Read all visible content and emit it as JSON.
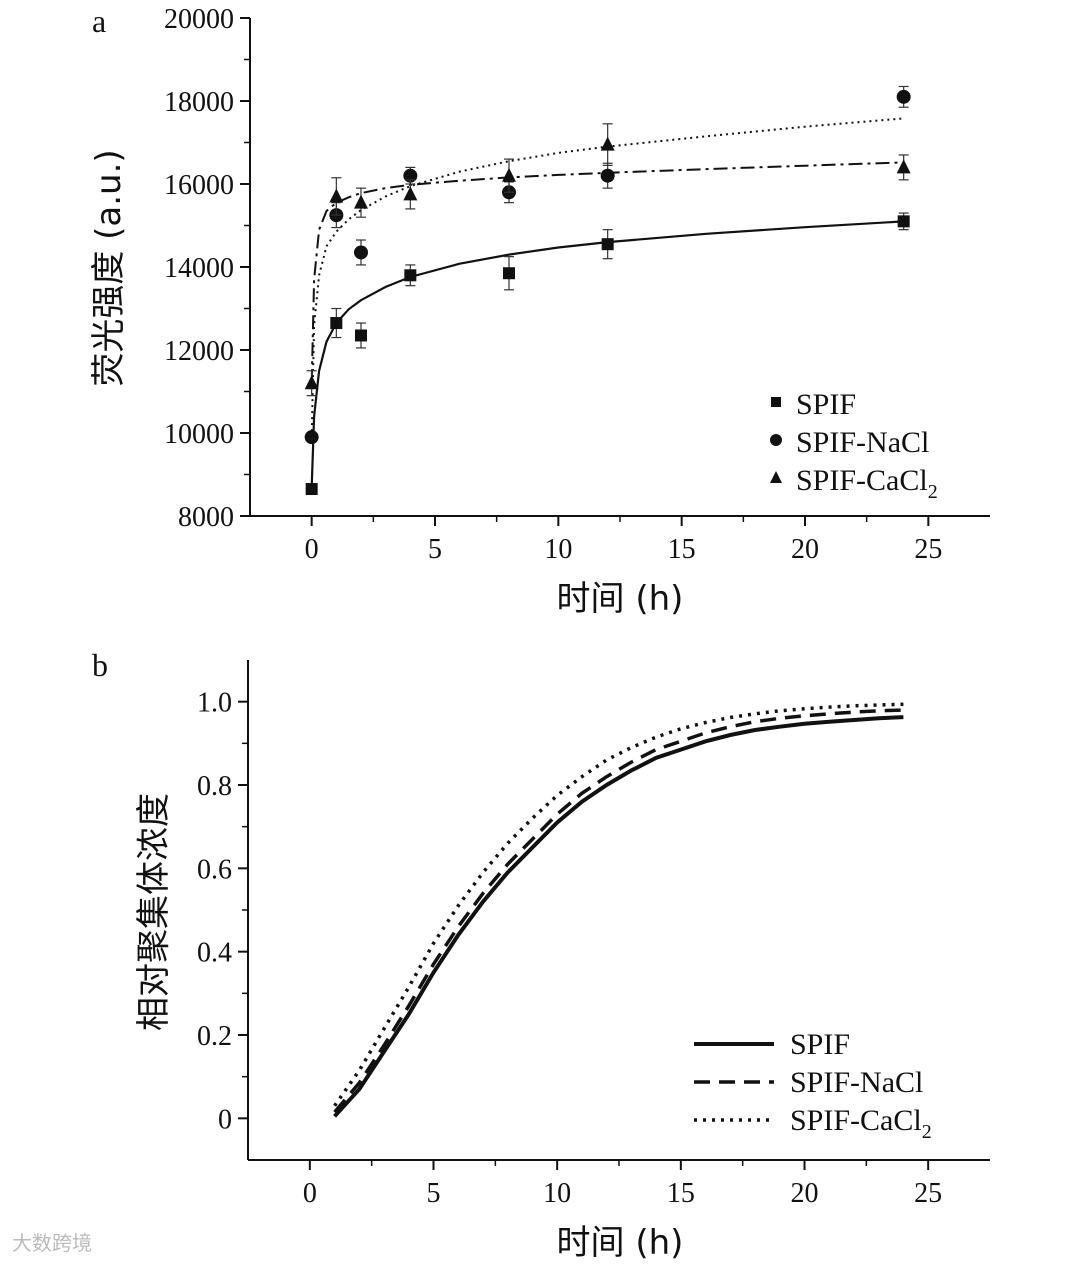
{
  "chart_data": [
    {
      "type": "scatter",
      "panel_label": "a",
      "xlabel": "时间 (h)",
      "ylabel": "荧光强度 (a.u.)",
      "xlim": [
        -2.5,
        27.5
      ],
      "ylim": [
        8000,
        20000
      ],
      "xticks": [
        0,
        5,
        10,
        15,
        20,
        25
      ],
      "yticks": [
        8000,
        10000,
        12000,
        14000,
        16000,
        18000,
        20000
      ],
      "legend_position": "bottom-right",
      "series": [
        {
          "name": "SPIF",
          "marker": "square",
          "fit_style": "solid",
          "x": [
            0,
            1,
            2,
            4,
            8,
            12,
            24
          ],
          "y": [
            8650,
            12650,
            12350,
            13800,
            13850,
            14550,
            15100
          ],
          "err": [
            0,
            350,
            300,
            250,
            400,
            350,
            200
          ]
        },
        {
          "name": "SPIF-NaCl",
          "marker": "circle",
          "fit_style": "dotted",
          "x": [
            0,
            1,
            2,
            4,
            8,
            12,
            24
          ],
          "y": [
            9900,
            15250,
            14350,
            16200,
            15800,
            16200,
            18100
          ],
          "err": [
            0,
            300,
            300,
            200,
            250,
            300,
            250
          ]
        },
        {
          "name": "SPIF-CaCl",
          "name_sub": "2",
          "marker": "triangle",
          "fit_style": "dashdot",
          "x": [
            0,
            1,
            2,
            4,
            8,
            12,
            24
          ],
          "y": [
            11200,
            15700,
            15550,
            15750,
            16200,
            16950,
            16400
          ],
          "err": [
            300,
            450,
            350,
            350,
            400,
            500,
            300
          ]
        }
      ],
      "fits": [
        {
          "name": "SPIF",
          "x": [
            0,
            0.1,
            0.3,
            0.6,
            1,
            1.5,
            2,
            3,
            4,
            6,
            8,
            10,
            12,
            16,
            20,
            24
          ],
          "y": [
            8700,
            10400,
            11500,
            12200,
            12650,
            12980,
            13200,
            13520,
            13760,
            14080,
            14300,
            14470,
            14600,
            14800,
            14960,
            15100
          ]
        },
        {
          "name": "SPIF-NaCl",
          "x": [
            0,
            0.1,
            0.3,
            0.6,
            1,
            1.5,
            2,
            3,
            4,
            6,
            8,
            10,
            12,
            16,
            20,
            24
          ],
          "y": [
            9900,
            12600,
            13800,
            14500,
            14850,
            15150,
            15370,
            15700,
            15950,
            16300,
            16550,
            16750,
            16900,
            17150,
            17380,
            17580
          ]
        },
        {
          "name": "SPIF-CaCl2",
          "x": [
            0,
            0.1,
            0.3,
            0.6,
            1,
            1.5,
            2,
            3,
            4,
            6,
            8,
            10,
            12,
            16,
            20,
            24
          ],
          "y": [
            11200,
            13700,
            14900,
            15350,
            15550,
            15680,
            15780,
            15900,
            15980,
            16080,
            16160,
            16220,
            16270,
            16360,
            16440,
            16520
          ]
        }
      ]
    },
    {
      "type": "line",
      "panel_label": "b",
      "xlabel": "时间 (h)",
      "ylabel": "相对聚集体浓度",
      "xlim": [
        -2.5,
        27.5
      ],
      "ylim": [
        -0.1,
        1.1
      ],
      "xticks": [
        0,
        5,
        10,
        15,
        20,
        25
      ],
      "yticks": [
        0,
        0.2,
        0.4,
        0.6,
        0.8,
        1.0
      ],
      "ytick_labels": [
        "0",
        "0.2",
        "0.4",
        "0.6",
        "0.8",
        "1.0"
      ],
      "legend_position": "bottom-right",
      "x": [
        1,
        2,
        3,
        4,
        5,
        6,
        7,
        8,
        9,
        10,
        11,
        12,
        13,
        14,
        15,
        16,
        17,
        18,
        19,
        20,
        21,
        22,
        23,
        24
      ],
      "series": [
        {
          "name": "SPIF",
          "style": "solid",
          "values": [
            0.005,
            0.07,
            0.16,
            0.25,
            0.35,
            0.44,
            0.52,
            0.59,
            0.65,
            0.71,
            0.76,
            0.8,
            0.835,
            0.865,
            0.885,
            0.905,
            0.92,
            0.932,
            0.94,
            0.947,
            0.952,
            0.956,
            0.96,
            0.963
          ]
        },
        {
          "name": "SPIF-NaCl",
          "style": "dashed",
          "values": [
            0.015,
            0.085,
            0.175,
            0.27,
            0.37,
            0.46,
            0.54,
            0.61,
            0.67,
            0.73,
            0.78,
            0.82,
            0.855,
            0.885,
            0.905,
            0.925,
            0.94,
            0.952,
            0.96,
            0.966,
            0.971,
            0.975,
            0.978,
            0.98
          ]
        },
        {
          "name": "SPIF-CaCl",
          "name_sub": "2",
          "style": "dotted",
          "values": [
            0.03,
            0.115,
            0.215,
            0.315,
            0.42,
            0.51,
            0.59,
            0.66,
            0.72,
            0.775,
            0.82,
            0.86,
            0.89,
            0.915,
            0.935,
            0.95,
            0.962,
            0.971,
            0.978,
            0.983,
            0.987,
            0.99,
            0.992,
            0.994
          ]
        }
      ]
    }
  ],
  "watermark": "大数跨境"
}
